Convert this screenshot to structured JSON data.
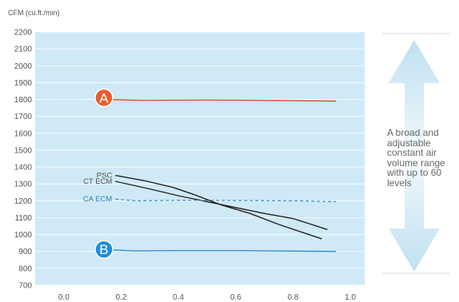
{
  "chart_data": {
    "type": "line",
    "ylabel": "CFM (cu.ft./min)",
    "xlabel": "",
    "xlim": [
      -0.1,
      1.05
    ],
    "ylim": [
      700,
      2200
    ],
    "x_ticks": [
      "0.0",
      "0.2",
      "0.4",
      "0.6",
      "0.8",
      "1.0"
    ],
    "x_tick_values": [
      0.0,
      0.2,
      0.4,
      0.6,
      0.8,
      1.0
    ],
    "y_ticks": [
      "2200",
      "2100",
      "2000",
      "1900",
      "1800",
      "1700",
      "1600",
      "1500",
      "1400",
      "1300",
      "1200",
      "1100",
      "1000",
      "900",
      "800",
      "700"
    ],
    "y_tick_values": [
      2200,
      2100,
      2000,
      1900,
      1800,
      1700,
      1600,
      1500,
      1400,
      1300,
      1200,
      1100,
      1000,
      900,
      800,
      700
    ],
    "series": [
      {
        "name": "",
        "color": "#e04a2f",
        "style": "solid",
        "x": [
          0.15,
          0.27,
          0.5,
          0.7,
          0.95
        ],
        "y": [
          1800,
          1795,
          1797,
          1795,
          1790
        ]
      },
      {
        "name": "PSC",
        "color": "#222222",
        "style": "solid",
        "x": [
          0.18,
          0.28,
          0.38,
          0.45,
          0.55,
          0.65,
          0.75,
          0.9
        ],
        "y": [
          1350,
          1320,
          1280,
          1240,
          1175,
          1125,
          1060,
          975
        ]
      },
      {
        "name": "CT ECM",
        "color": "#222222",
        "style": "solid",
        "x": [
          0.18,
          0.3,
          0.4,
          0.5,
          0.6,
          0.7,
          0.8,
          0.92
        ],
        "y": [
          1315,
          1270,
          1230,
          1195,
          1160,
          1125,
          1095,
          1030
        ]
      },
      {
        "name": "CA ECM",
        "color": "#2a7fc0",
        "style": "dashed",
        "x": [
          0.18,
          0.25,
          0.4,
          0.6,
          0.8,
          0.95
        ],
        "y": [
          1210,
          1200,
          1203,
          1202,
          1200,
          1195
        ]
      },
      {
        "name": "",
        "color": "#2a8ccf",
        "style": "solid",
        "x": [
          0.15,
          0.25,
          0.4,
          0.6,
          0.8,
          0.95
        ],
        "y": [
          910,
          903,
          905,
          905,
          902,
          900
        ]
      }
    ],
    "markers": [
      {
        "label": "A",
        "x": 0.14,
        "y": 1810,
        "color": "#e85d2f"
      },
      {
        "label": "B",
        "x": 0.14,
        "y": 912,
        "color": "#1e8fd6"
      }
    ],
    "annotation": "A broad and adjustable constant air volume range with up to 60 levels",
    "grid": true
  },
  "colors": {
    "plot_bg": "#cfe9f6",
    "grid": "#ffffff",
    "arrow": "#bfe0f1"
  }
}
